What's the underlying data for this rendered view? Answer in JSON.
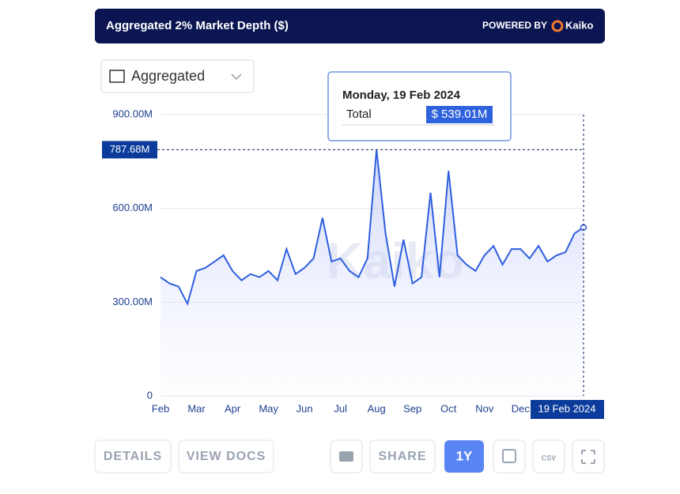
{
  "header": {
    "powered_by": "POWERED BY",
    "brand": "Kaiko"
  },
  "dropdown": "Aggregated",
  "buttons": {
    "details": "DETAILS",
    "view_docs": "VIEW DOCS",
    "share": "SHARE",
    "range": "1Y",
    "csv": "CSV"
  },
  "chart_data": {
    "type": "line",
    "title": "Aggregated 2% Market Depth ($)",
    "categories": [
      "Feb",
      null,
      null,
      null,
      "Mar",
      null,
      null,
      null,
      "Apr",
      null,
      null,
      null,
      "May",
      null,
      null,
      null,
      "Jun",
      null,
      null,
      null,
      "Jul",
      null,
      null,
      null,
      "Aug",
      null,
      null,
      null,
      "Sep",
      null,
      null,
      null,
      "Oct",
      null,
      null,
      null,
      "Nov",
      null,
      null,
      null,
      "Dec",
      null,
      null,
      null,
      null,
      null,
      null,
      null
    ],
    "series": [
      {
        "name": "Total",
        "color": "#2f5fe0",
        "values": [
          380,
          360,
          350,
          295,
          400,
          410,
          430,
          450,
          400,
          370,
          390,
          380,
          400,
          370,
          470,
          390,
          410,
          440,
          570,
          430,
          440,
          400,
          380,
          440,
          787.68,
          520,
          350,
          500,
          360,
          380,
          650,
          380,
          720,
          450,
          420,
          400,
          450,
          480,
          420,
          470,
          470,
          440,
          480,
          430,
          450,
          460,
          520,
          539.01
        ]
      }
    ],
    "ylim": [
      0,
      900
    ],
    "yticks": [
      0,
      {
        "value": 300,
        "label": "300.00M"
      },
      {
        "value": 600,
        "label": "600.00M"
      },
      {
        "value": 900,
        "label": "900.00M"
      }
    ],
    "grid": true,
    "crosshair": {
      "value": 787.68,
      "label": "787.68M"
    },
    "x_highlight": "19 Feb 2024",
    "tooltip": {
      "date": "Monday, 19 Feb 2024",
      "value_label": "$ 539.01M"
    }
  }
}
